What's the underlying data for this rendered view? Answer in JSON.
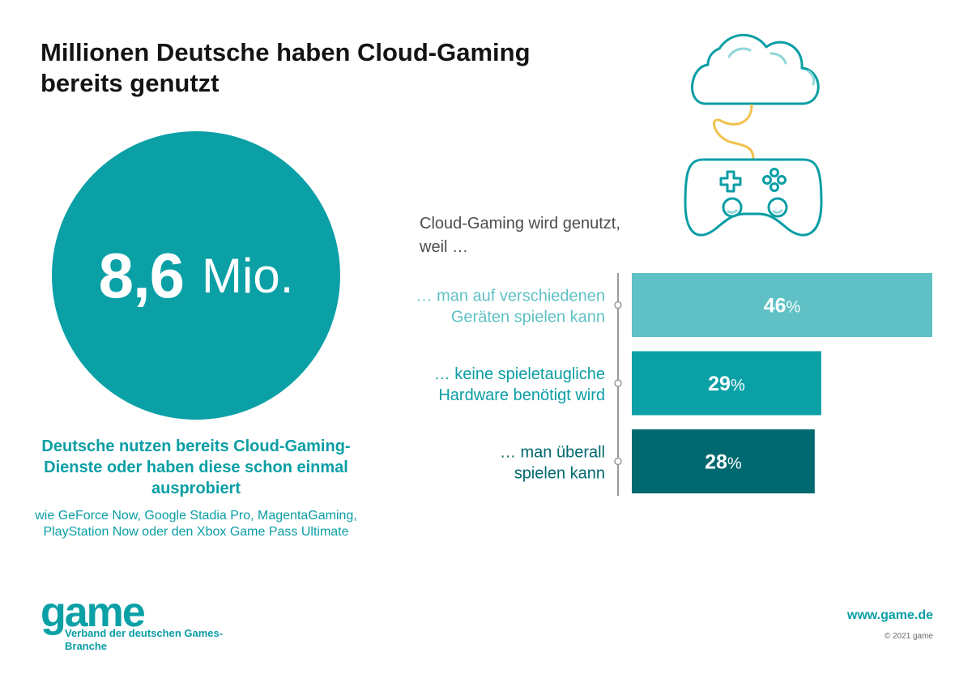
{
  "title": "Millionen Deutsche haben Cloud-Gaming\nbereits genutzt",
  "headline_stat": {
    "number": "8,6",
    "unit": "Mio."
  },
  "description": {
    "main": "Deutsche nutzen bereits Cloud-Gaming-Dienste oder haben diese schon einmal ausprobiert",
    "sub": "wie GeForce Now, Google Stadia Pro, MagentaGaming, PlayStation Now oder den Xbox Game Pass Ultimate"
  },
  "question": "Cloud-Gaming wird genutzt, weil …",
  "colors": {
    "accent": "#0aa0a6",
    "bar_light": "#5fc1c5",
    "bar_mid": "#0aa0a6",
    "bar_dark": "#006970",
    "cable": "#f2c14e"
  },
  "icons": [
    "cloud-icon",
    "gamepad-icon"
  ],
  "chart_data": {
    "type": "bar",
    "orientation": "horizontal",
    "categories": [
      "… man auf verschiedenen Geräten spielen kann",
      "… keine spieletaugliche Hardware benötigt wird",
      "… man überall spielen kann"
    ],
    "category_lines": [
      [
        "… man auf verschiedenen",
        "Geräten spielen kann"
      ],
      [
        "… keine spieletaugliche",
        "Hardware benötigt wird"
      ],
      [
        "… man überall",
        "spielen kann"
      ]
    ],
    "values": [
      46,
      29,
      28
    ],
    "value_labels": [
      "46",
      "29",
      "28"
    ],
    "unit": "%",
    "bar_colors": [
      "#5fc1c5",
      "#0aa0a6",
      "#006970"
    ],
    "label_colors": [
      "#5fc1c5",
      "#0a9ea5",
      "#006970"
    ],
    "xlim": [
      0,
      46
    ]
  },
  "footer": {
    "logo": "game",
    "org_name": "Verband der deutschen Games-Branche",
    "url": "www.game.de",
    "copyright": "© 2021 game"
  }
}
